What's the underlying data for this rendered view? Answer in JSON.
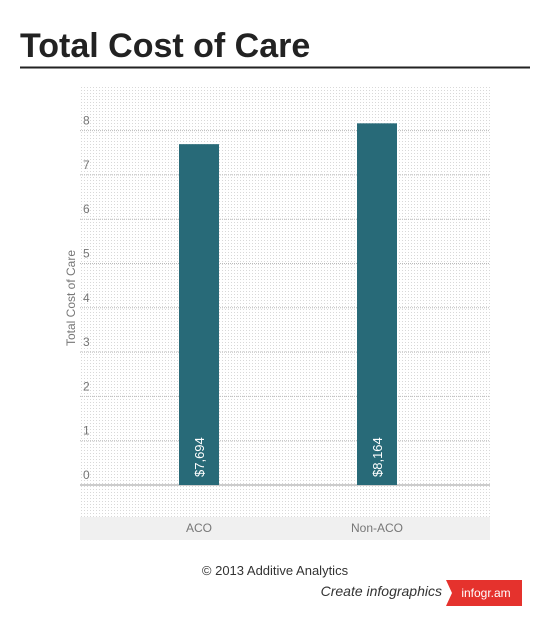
{
  "chart_data": {
    "type": "bar",
    "title": "Total Cost of Care",
    "ylabel": "Total Cost of Care",
    "categories": [
      "ACO",
      "Non-ACO"
    ],
    "values": [
      7.694,
      8.164
    ],
    "value_labels": [
      "$7,694",
      "$8,164"
    ],
    "color": "#286a78",
    "ylim": [
      0,
      9
    ],
    "yticks": [
      0,
      1,
      2,
      3,
      4,
      5,
      6,
      7,
      8
    ],
    "grid": true
  },
  "footer": {
    "copyright": "© 2013 Additive Analytics",
    "cta": "Create infographics",
    "brand": "infogr.am"
  }
}
